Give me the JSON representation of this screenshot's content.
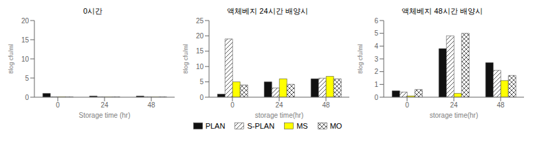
{
  "chart_data": [
    {
      "type": "bar",
      "title": "0시간",
      "categories": [
        "0",
        "24",
        "48"
      ],
      "x_label": "Storage time (hr)",
      "y_label": "8log cfu/ml",
      "ylim": [
        0,
        20
      ],
      "yticks": [
        0,
        5,
        10,
        15,
        20
      ],
      "legend": "bottom",
      "series": [
        {
          "name": "PLAN",
          "color": "#111111",
          "values": [
            1.0,
            0.3,
            0.3
          ]
        },
        {
          "name": "S-PLAN",
          "color": "#ffffff",
          "values": [
            0.1,
            0.1,
            0.1
          ]
        },
        {
          "name": "MS",
          "color": "#ffff00",
          "values": [
            0.1,
            0.05,
            0.05
          ]
        },
        {
          "name": "MO",
          "color": "#ffffff",
          "values": [
            0.1,
            0.1,
            0.1
          ]
        }
      ]
    },
    {
      "type": "bar",
      "title": "액체베지 24시간 배양시",
      "categories": [
        "0",
        "24",
        "48"
      ],
      "x_label": "storage time(hr)",
      "y_label": "8log cfu/ml",
      "ylim": [
        0,
        25
      ],
      "yticks": [
        0,
        5,
        10,
        15,
        20,
        25
      ],
      "legend": "bottom",
      "series": [
        {
          "name": "PLAN",
          "color": "#111111",
          "values": [
            1.0,
            5.0,
            6.0
          ]
        },
        {
          "name": "S-PLAN",
          "color": "#ffffff",
          "values": [
            19.0,
            3.0,
            6.2
          ]
        },
        {
          "name": "MS",
          "color": "#ffff00",
          "values": [
            5.0,
            6.0,
            6.8
          ]
        },
        {
          "name": "MO",
          "color": "#ffffff",
          "values": [
            4.0,
            4.2,
            6.0
          ]
        }
      ]
    },
    {
      "type": "bar",
      "title": "액체베지 48시간 배양시",
      "categories": [
        "0",
        "24",
        "48"
      ],
      "x_label": "storage time(hr)",
      "y_label": "8log cfu/ml",
      "ylim": [
        0,
        6
      ],
      "yticks": [
        0,
        1,
        2,
        3,
        4,
        5,
        6
      ],
      "legend": "bottom",
      "series": [
        {
          "name": "PLAN",
          "color": "#111111",
          "values": [
            0.5,
            3.8,
            2.7
          ]
        },
        {
          "name": "S-PLAN",
          "color": "#ffffff",
          "values": [
            0.4,
            4.8,
            2.1
          ]
        },
        {
          "name": "MS",
          "color": "#ffff00",
          "values": [
            0.1,
            0.3,
            1.3
          ]
        },
        {
          "name": "MO",
          "color": "#ffffff",
          "values": [
            0.6,
            5.0,
            1.7
          ]
        }
      ]
    }
  ]
}
